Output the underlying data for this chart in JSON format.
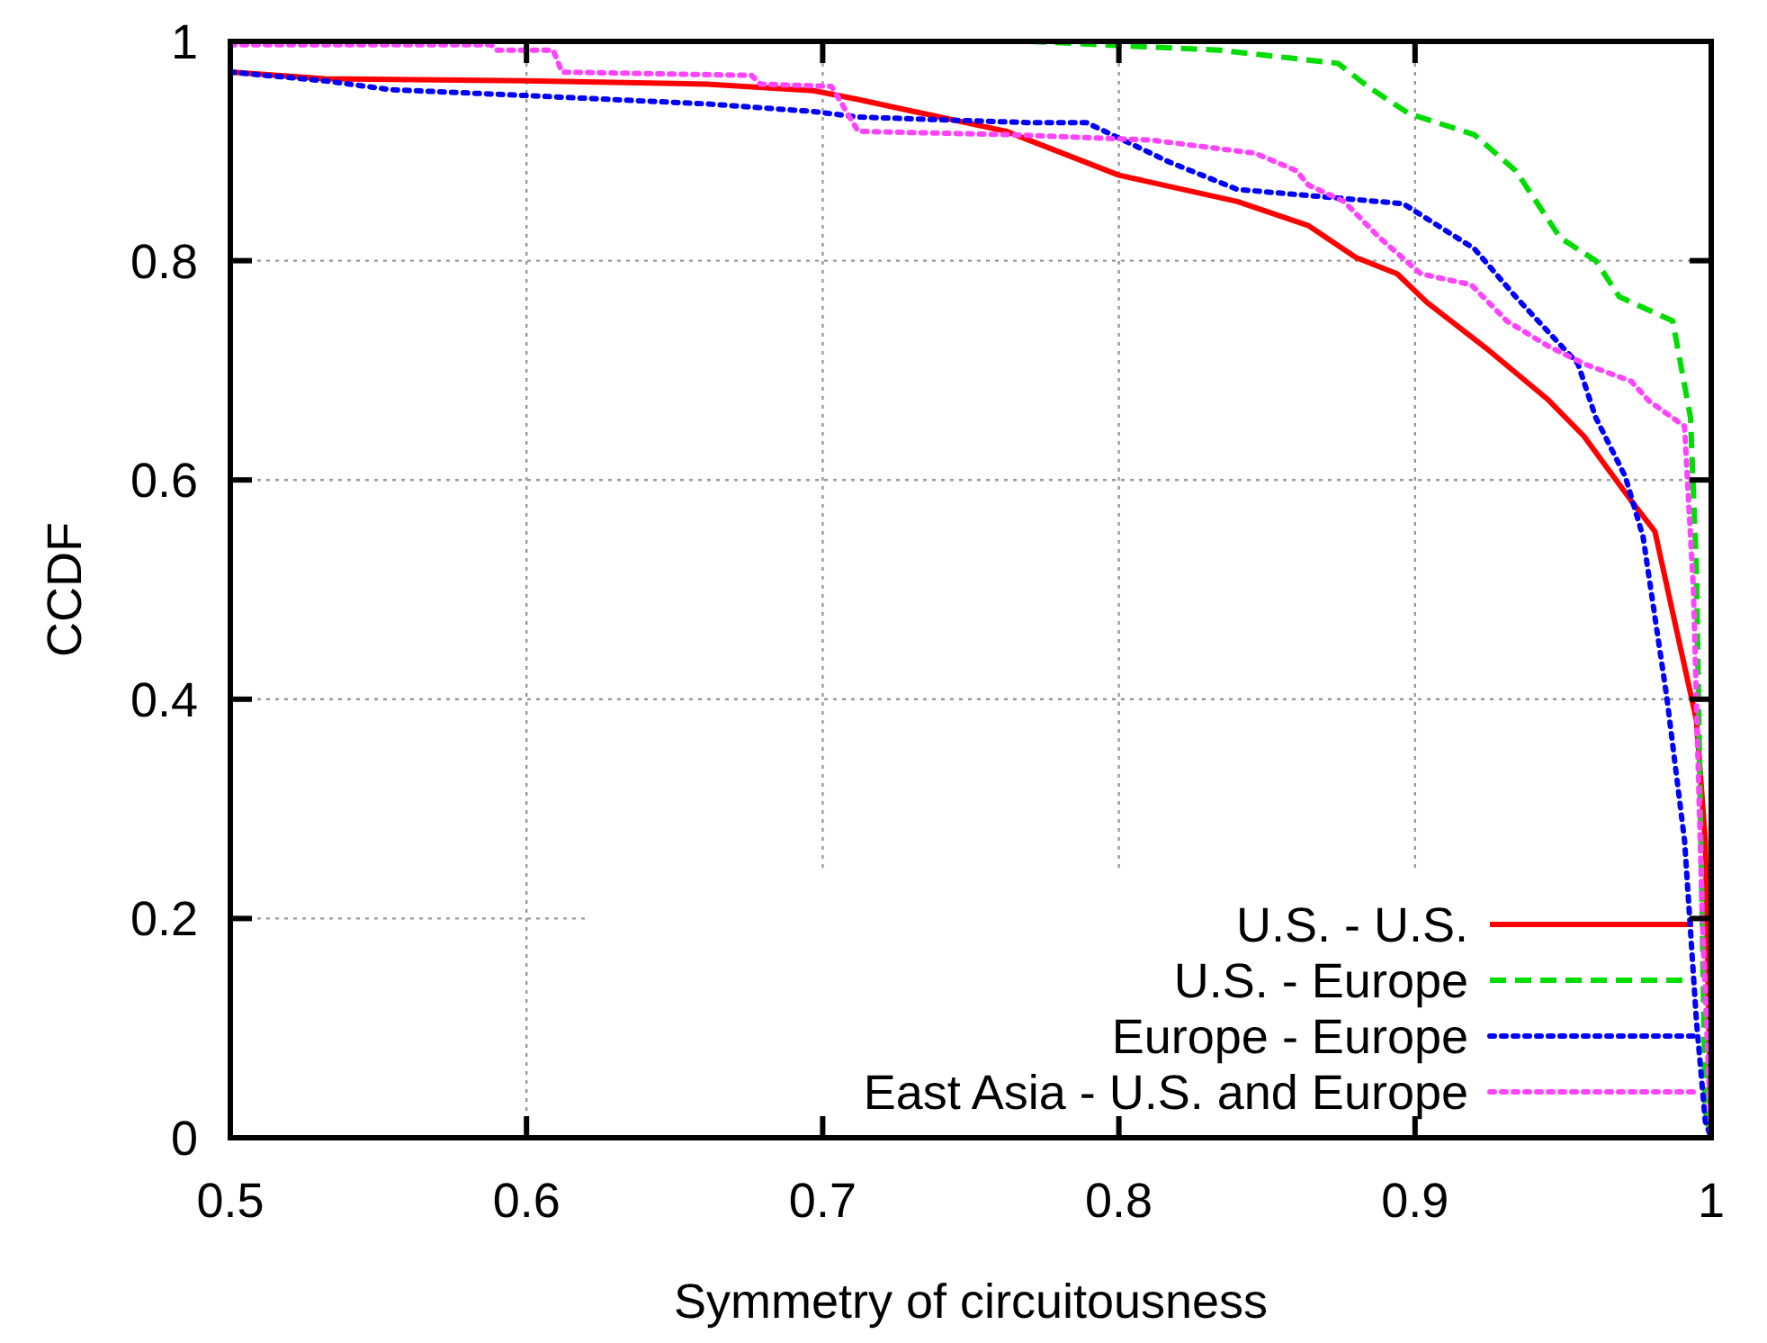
{
  "chart_data": {
    "type": "line",
    "xlabel": "Symmetry of circuitousness",
    "ylabel": "CCDF",
    "xlim": [
      0.5,
      1
    ],
    "ylim": [
      0,
      1
    ],
    "xticks": [
      0.5,
      0.6,
      0.7,
      0.8,
      0.9,
      1
    ],
    "yticks": [
      0,
      0.2,
      0.4,
      0.6,
      0.8,
      1
    ],
    "grid": true,
    "legend": "bottom right",
    "series": [
      {
        "name": "U.S. - U.S.",
        "color": "#ff0000",
        "line_style": "solid",
        "x": [
          0.5,
          0.532,
          0.6,
          0.661,
          0.697,
          0.712,
          0.762,
          0.8,
          0.84,
          0.864,
          0.88,
          0.894,
          0.904,
          0.925,
          0.945,
          0.957,
          0.973,
          0.981,
          0.987,
          0.995,
          0.998,
          1.0
        ],
        "values": [
          0.972,
          0.966,
          0.964,
          0.961,
          0.955,
          0.947,
          0.918,
          0.878,
          0.854,
          0.832,
          0.803,
          0.788,
          0.762,
          0.718,
          0.673,
          0.64,
          0.581,
          0.553,
          0.479,
          0.381,
          0.271,
          0
        ]
      },
      {
        "name": "U.S. - Europe",
        "color": "#00dd00",
        "line_style": "dashed",
        "x": [
          0.77,
          0.834,
          0.874,
          0.884,
          0.898,
          0.92,
          0.934,
          0.949,
          0.961,
          0.969,
          0.987,
          0.993,
          0.995,
          0.998,
          1.0
        ],
        "values": [
          1.0,
          0.992,
          0.98,
          0.959,
          0.934,
          0.915,
          0.882,
          0.821,
          0.8,
          0.767,
          0.745,
          0.657,
          0.52,
          0.025,
          0
        ]
      },
      {
        "name": "Europe - Europe",
        "color": "#0000ff",
        "line_style": "dotted",
        "x": [
          0.5,
          0.532,
          0.554,
          0.597,
          0.661,
          0.697,
          0.712,
          0.769,
          0.789,
          0.817,
          0.84,
          0.896,
          0.92,
          0.934,
          0.955,
          0.961,
          0.971,
          0.977,
          0.985,
          0.991,
          0.995,
          0.998,
          1.0
        ],
        "values": [
          0.972,
          0.964,
          0.956,
          0.951,
          0.943,
          0.936,
          0.931,
          0.926,
          0.926,
          0.89,
          0.865,
          0.852,
          0.811,
          0.767,
          0.706,
          0.657,
          0.603,
          0.548,
          0.402,
          0.271,
          0.107,
          0.015,
          0
        ]
      },
      {
        "name": "East Asia - U.S. and Europe",
        "color": "#ff44ff",
        "line_style": "dotted",
        "x": [
          0.5,
          0.588,
          0.59,
          0.609,
          0.612,
          0.676,
          0.679,
          0.703,
          0.708,
          0.712,
          0.762,
          0.811,
          0.846,
          0.86,
          0.864,
          0.876,
          0.888,
          0.902,
          0.919,
          0.931,
          0.945,
          0.957,
          0.973,
          0.979,
          0.991,
          0.994,
          0.997,
          1.0
        ],
        "values": [
          0.997,
          0.997,
          0.992,
          0.992,
          0.972,
          0.969,
          0.961,
          0.959,
          0.936,
          0.918,
          0.915,
          0.91,
          0.898,
          0.882,
          0.869,
          0.854,
          0.821,
          0.788,
          0.778,
          0.745,
          0.722,
          0.706,
          0.69,
          0.672,
          0.649,
          0.5,
          0.2,
          0
        ]
      }
    ]
  }
}
